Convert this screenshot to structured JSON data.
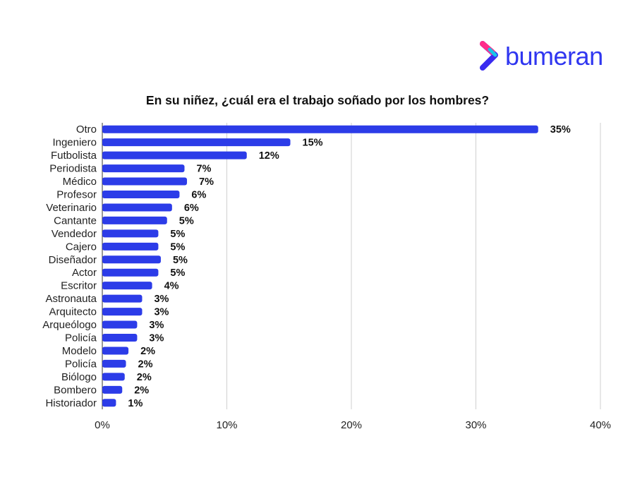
{
  "logo": {
    "text": "bumeran",
    "colors": {
      "text": "#2f36f0",
      "mark_top": "#ff2d8a",
      "mark_bottom": "#3a2bf0",
      "mark_mid": "#16c6e8"
    }
  },
  "chart_data": {
    "type": "bar",
    "orientation": "horizontal",
    "title": "En su niñez, ¿cuál era el trabajo soñado por los hombres?",
    "categories": [
      "Otro",
      "Ingeniero",
      "Futbolista",
      "Periodista",
      "Médico",
      "Profesor",
      "Veterinario",
      "Cantante",
      "Vendedor",
      "Cajero",
      "Diseñador",
      "Actor",
      "Escritor",
      "Astronauta",
      "Arquitecto",
      "Arqueólogo",
      "Policía",
      "Modelo",
      "Policía",
      "Biólogo",
      "Bombero",
      "Historiador"
    ],
    "values": [
      35,
      15.1,
      11.6,
      6.6,
      6.8,
      6.2,
      5.6,
      5.2,
      4.5,
      4.5,
      4.7,
      4.5,
      4.0,
      3.2,
      3.2,
      2.8,
      2.8,
      2.1,
      1.9,
      1.8,
      1.6,
      1.1
    ],
    "value_labels": [
      "35%",
      "15%",
      "12%",
      "7%",
      "7%",
      "6%",
      "6%",
      "5%",
      "5%",
      "5%",
      "5%",
      "5%",
      "4%",
      "3%",
      "3%",
      "3%",
      "3%",
      "2%",
      "2%",
      "2%",
      "2%",
      "1%"
    ],
    "xlim": [
      0,
      40
    ],
    "xticks": [
      "0%",
      "10%",
      "20%",
      "30%",
      "40%"
    ],
    "xtick_values": [
      0,
      10,
      20,
      30,
      40
    ],
    "bar_color": "#2c3ce8",
    "grid": "vertical",
    "xlabel": "",
    "ylabel": ""
  }
}
